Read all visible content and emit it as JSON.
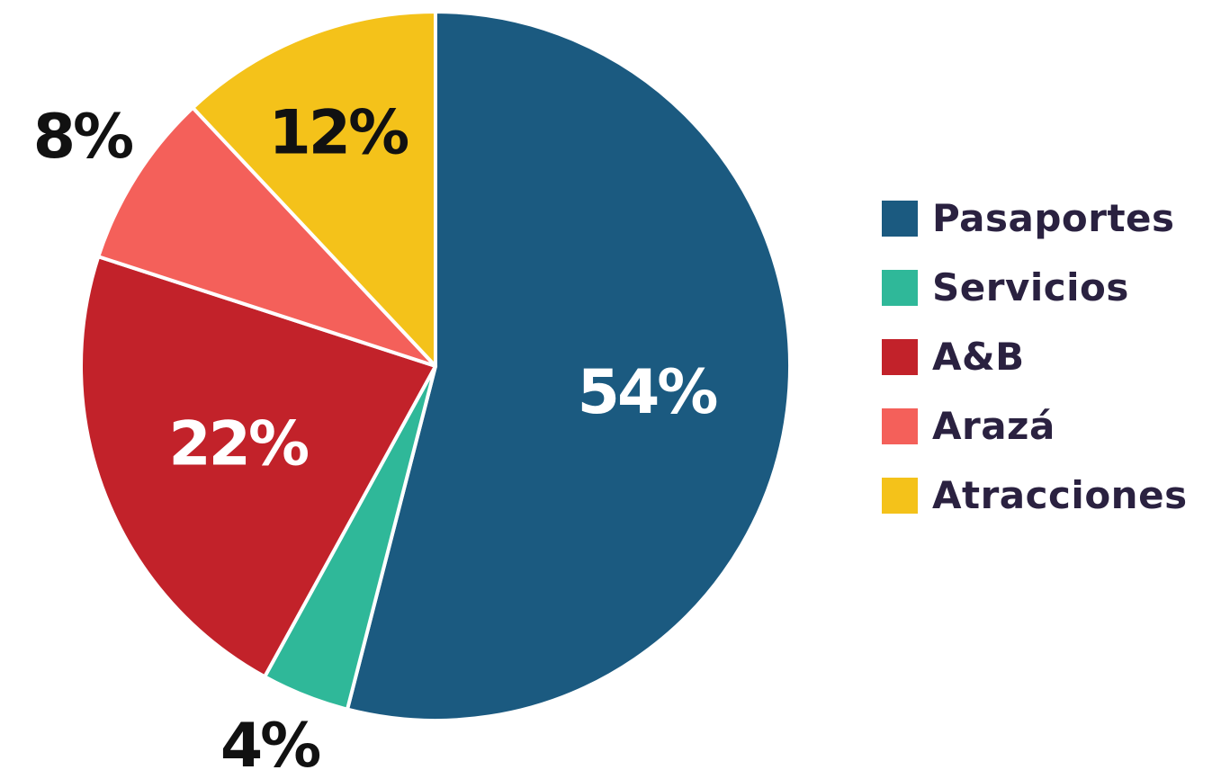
{
  "chart_data": {
    "type": "pie",
    "title": "",
    "legend_position": "right",
    "slices": [
      {
        "name": "Pasaportes",
        "value": 54,
        "label": "54%",
        "color": "#1b5a80",
        "label_color": "#ffffff"
      },
      {
        "name": "Servicios",
        "value": 4,
        "label": "4%",
        "color": "#2fb899",
        "label_color": "#111111"
      },
      {
        "name": "A&B",
        "value": 22,
        "label": "22%",
        "color": "#c2222a",
        "label_color": "#ffffff"
      },
      {
        "name": "Arazá",
        "value": 8,
        "label": "8%",
        "color": "#f4605a",
        "label_color": "#111111"
      },
      {
        "name": "Atracciones",
        "value": 12,
        "label": "12%",
        "color": "#f4c21a",
        "label_color": "#111111"
      }
    ],
    "legend": [
      {
        "name": "Pasaportes",
        "color": "#1b5a80"
      },
      {
        "name": "Servicios",
        "color": "#2fb899"
      },
      {
        "name": "A&B",
        "color": "#c2222a"
      },
      {
        "name": "Arazá",
        "color": "#f4605a"
      },
      {
        "name": "Atracciones",
        "color": "#f4c21a"
      }
    ]
  }
}
